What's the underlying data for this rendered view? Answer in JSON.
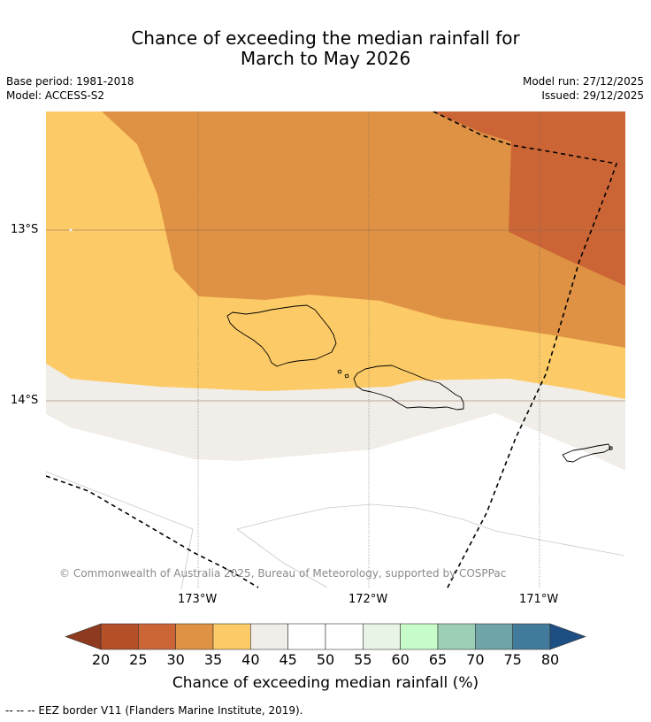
{
  "title": {
    "line1": "Chance of exceeding the median rainfall for",
    "line2": "March to May 2026"
  },
  "meta": {
    "base_period": "Base period: 1981-2018",
    "model": "Model: ACCESS-S2",
    "model_run": "Model run: 27/12/2025",
    "issued": "Issued: 29/12/2025"
  },
  "map": {
    "lat_labels": [
      "13°S",
      "14°S"
    ],
    "lon_labels": [
      "173°W",
      "172°W",
      "171°W"
    ],
    "copyright": "© Commonwealth of Australia 2025, Bureau of Meteorology, supported by COSPPac",
    "colors": {
      "c20_25": "#b44f27",
      "c25_30": "#cc6535",
      "c30_35": "#df9244",
      "c35_40": "#fcca66",
      "c40_45": "#f1ede8",
      "c45_55": "#ffffff",
      "land_outline": "#000000",
      "grid": "#555555",
      "eez": "#000000"
    }
  },
  "colorbar": {
    "ticks": [
      "20",
      "25",
      "30",
      "35",
      "40",
      "45",
      "50",
      "55",
      "60",
      "65",
      "70",
      "75",
      "80"
    ],
    "colors": [
      "#b44f27",
      "#cc6535",
      "#df9244",
      "#fcca66",
      "#f1ede8",
      "#ffffff",
      "#ffffff",
      "#e8f5e6",
      "#c7fbc8",
      "#9ccfb5",
      "#6fa4a9",
      "#427a9b"
    ],
    "low_extend_color": "#8d3a1e",
    "high_extend_color": "#1e4f84",
    "label": "Chance of exceeding median rainfall (%)"
  },
  "footer": "--  --  -- EEZ border V11 (Flanders Marine Institute, 2019)."
}
